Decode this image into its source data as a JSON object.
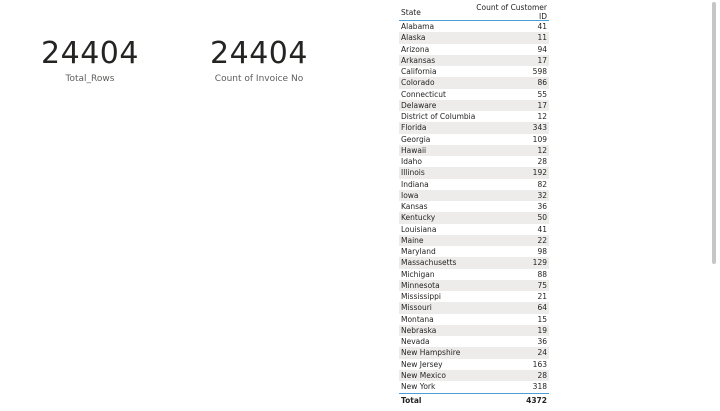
{
  "cards": [
    {
      "value": "24404",
      "label": "Total_Rows"
    },
    {
      "value": "24404",
      "label": "Count of Invoice No"
    }
  ],
  "table": {
    "headers": {
      "state": "State",
      "count": "Count of Customer ID"
    },
    "rows": [
      {
        "state": "Alabama",
        "count": "41"
      },
      {
        "state": "Alaska",
        "count": "11"
      },
      {
        "state": "Arizona",
        "count": "94"
      },
      {
        "state": "Arkansas",
        "count": "17"
      },
      {
        "state": "California",
        "count": "598"
      },
      {
        "state": "Colorado",
        "count": "86"
      },
      {
        "state": "Connecticut",
        "count": "55"
      },
      {
        "state": "Delaware",
        "count": "17"
      },
      {
        "state": "District of Columbia",
        "count": "12"
      },
      {
        "state": "Florida",
        "count": "343"
      },
      {
        "state": "Georgia",
        "count": "109"
      },
      {
        "state": "Hawaii",
        "count": "12"
      },
      {
        "state": "Idaho",
        "count": "28"
      },
      {
        "state": "Illinois",
        "count": "192"
      },
      {
        "state": "Indiana",
        "count": "82"
      },
      {
        "state": "Iowa",
        "count": "32"
      },
      {
        "state": "Kansas",
        "count": "36"
      },
      {
        "state": "Kentucky",
        "count": "50"
      },
      {
        "state": "Louisiana",
        "count": "41"
      },
      {
        "state": "Maine",
        "count": "22"
      },
      {
        "state": "Maryland",
        "count": "98"
      },
      {
        "state": "Massachusetts",
        "count": "129"
      },
      {
        "state": "Michigan",
        "count": "88"
      },
      {
        "state": "Minnesota",
        "count": "75"
      },
      {
        "state": "Mississippi",
        "count": "21"
      },
      {
        "state": "Missouri",
        "count": "64"
      },
      {
        "state": "Montana",
        "count": "15"
      },
      {
        "state": "Nebraska",
        "count": "19"
      },
      {
        "state": "Nevada",
        "count": "36"
      },
      {
        "state": "New Hampshire",
        "count": "24"
      },
      {
        "state": "New Jersey",
        "count": "163"
      },
      {
        "state": "New Mexico",
        "count": "28"
      },
      {
        "state": "New York",
        "count": "318"
      }
    ],
    "total": {
      "label": "Total",
      "count": "4372"
    }
  },
  "colors": {
    "header_border": "#4b9fd6",
    "row_band": "#eeeceb"
  }
}
